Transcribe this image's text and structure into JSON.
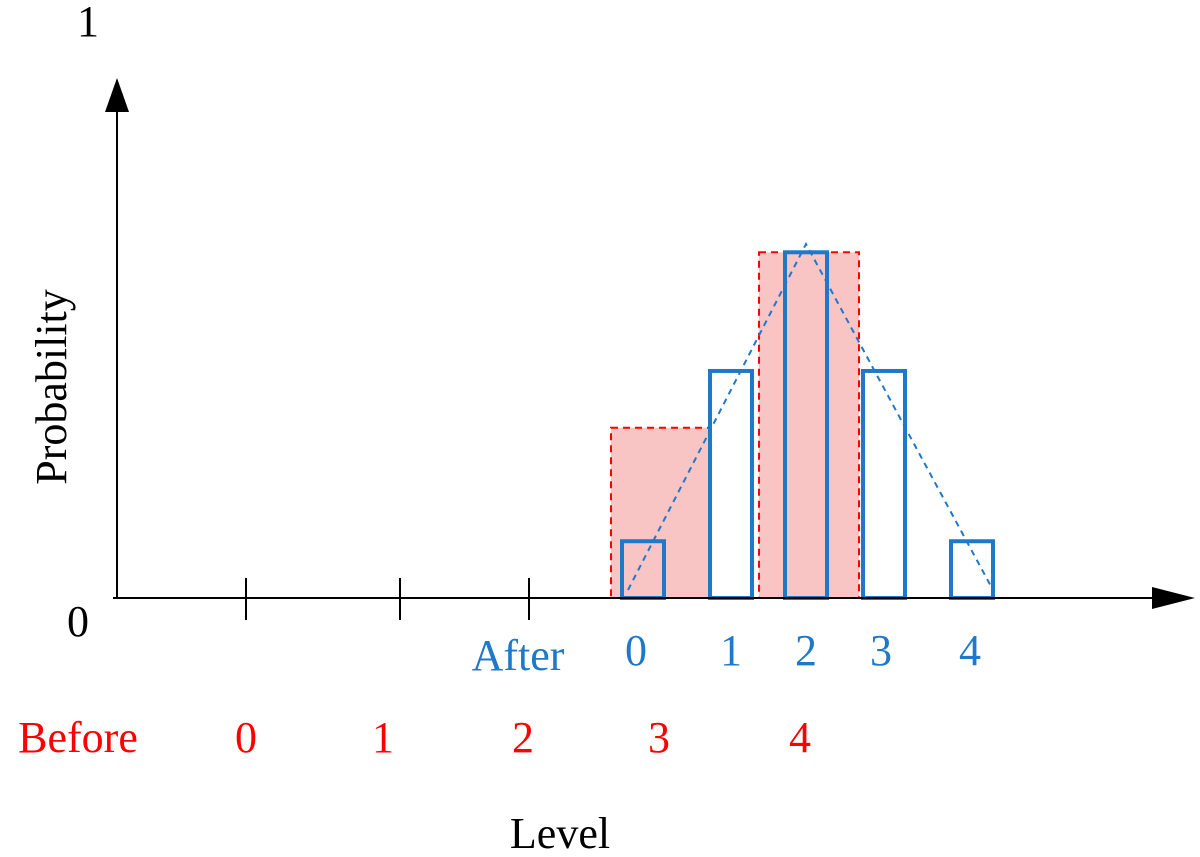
{
  "chart_data": {
    "type": "bar",
    "title": "",
    "xlabel": "Level",
    "ylabel": "Probability",
    "y_tick_labels": {
      "bottom": "0",
      "top": "1"
    },
    "ylim": [
      0,
      1
    ],
    "grid": false,
    "before": {
      "label": "Before",
      "color": "#ff0000",
      "fill": "#f9c4c4",
      "levels": [
        "0",
        "1",
        "2",
        "3",
        "4"
      ],
      "values": [
        0,
        0,
        0,
        0.33,
        0.67
      ]
    },
    "after": {
      "label": "After",
      "color": "#1f78c8",
      "levels": [
        "0",
        "1",
        "2",
        "3",
        "4"
      ],
      "values": [
        0.11,
        0.44,
        0.67,
        0.44,
        0.11
      ]
    }
  }
}
